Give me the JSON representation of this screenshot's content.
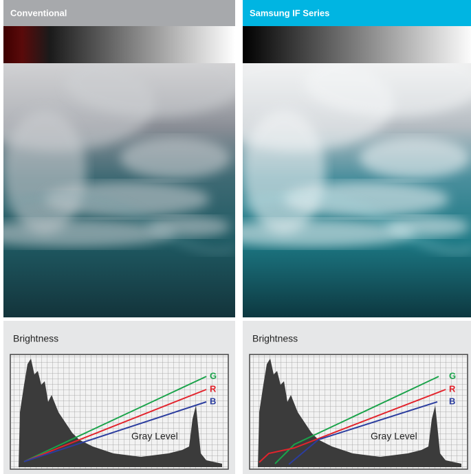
{
  "panels": [
    {
      "title": "Conventional",
      "brightness": {
        "title": "Brightness",
        "series_labels": [
          "G",
          "R",
          "B"
        ],
        "axis_label": "Gray Level"
      }
    },
    {
      "title": "Samsung IF Series",
      "brightness": {
        "title": "Brightness",
        "series_labels": [
          "G",
          "R",
          "B"
        ],
        "axis_label": "Gray Level"
      }
    }
  ]
}
